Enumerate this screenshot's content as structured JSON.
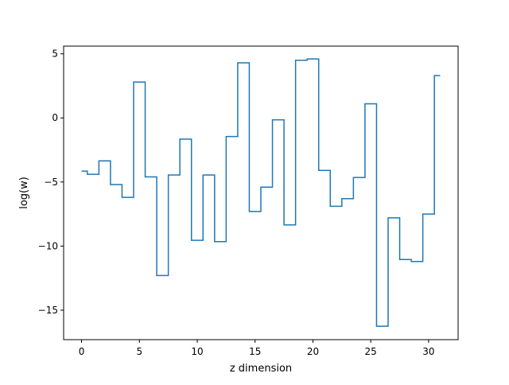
{
  "chart_data": {
    "type": "step",
    "title": "",
    "xlabel": "z dimension",
    "ylabel": "log(w)",
    "xlim": [
      -1.55,
      32.55
    ],
    "ylim": [
      -17.3,
      5.6
    ],
    "x_ticks": [
      0,
      5,
      10,
      15,
      20,
      25,
      30
    ],
    "x_tick_labels": [
      "0",
      "5",
      "10",
      "15",
      "20",
      "25",
      "30"
    ],
    "y_ticks": [
      5,
      0,
      -5,
      -10,
      -15
    ],
    "y_tick_labels": [
      "5",
      "0",
      "−5",
      "−10",
      "−15"
    ],
    "grid": false,
    "series": [
      {
        "color": "#1f77b4",
        "step_where": "mid",
        "x": [
          0,
          1,
          2,
          3,
          4,
          5,
          6,
          7,
          8,
          9,
          10,
          11,
          12,
          13,
          14,
          15,
          16,
          17,
          18,
          19,
          20,
          21,
          22,
          23,
          24,
          25,
          26,
          27,
          28,
          29,
          30,
          31
        ],
        "values": [
          -4.15,
          -4.4,
          -3.35,
          -5.2,
          -6.2,
          2.8,
          -4.6,
          -12.3,
          -4.45,
          -1.65,
          -9.55,
          -4.45,
          -9.65,
          -1.45,
          4.3,
          -7.3,
          -5.4,
          -0.15,
          -8.35,
          4.5,
          4.6,
          -4.1,
          -6.9,
          -6.3,
          -4.65,
          1.1,
          -16.25,
          -7.8,
          -11.05,
          -11.2,
          -7.5,
          3.3
        ]
      }
    ]
  }
}
